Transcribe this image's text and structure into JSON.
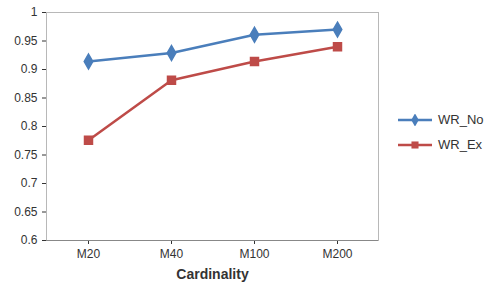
{
  "chart_data": {
    "type": "line",
    "x_label": "Cardinality",
    "categories": [
      "M20",
      "M40",
      "M100",
      "M200"
    ],
    "series": [
      {
        "name": "WR_No",
        "color": "#4a7ebb",
        "marker": "diamond",
        "values": [
          0.914,
          0.929,
          0.961,
          0.97
        ]
      },
      {
        "name": "WR_Ex",
        "color": "#be4b48",
        "marker": "square",
        "values": [
          0.776,
          0.881,
          0.914,
          0.94
        ]
      }
    ],
    "ylim": [
      0.6,
      1
    ],
    "yticks": [
      0.6,
      0.65,
      0.7,
      0.75,
      0.8,
      0.85,
      0.9,
      0.95,
      1
    ],
    "grid": false,
    "legend": "right"
  }
}
